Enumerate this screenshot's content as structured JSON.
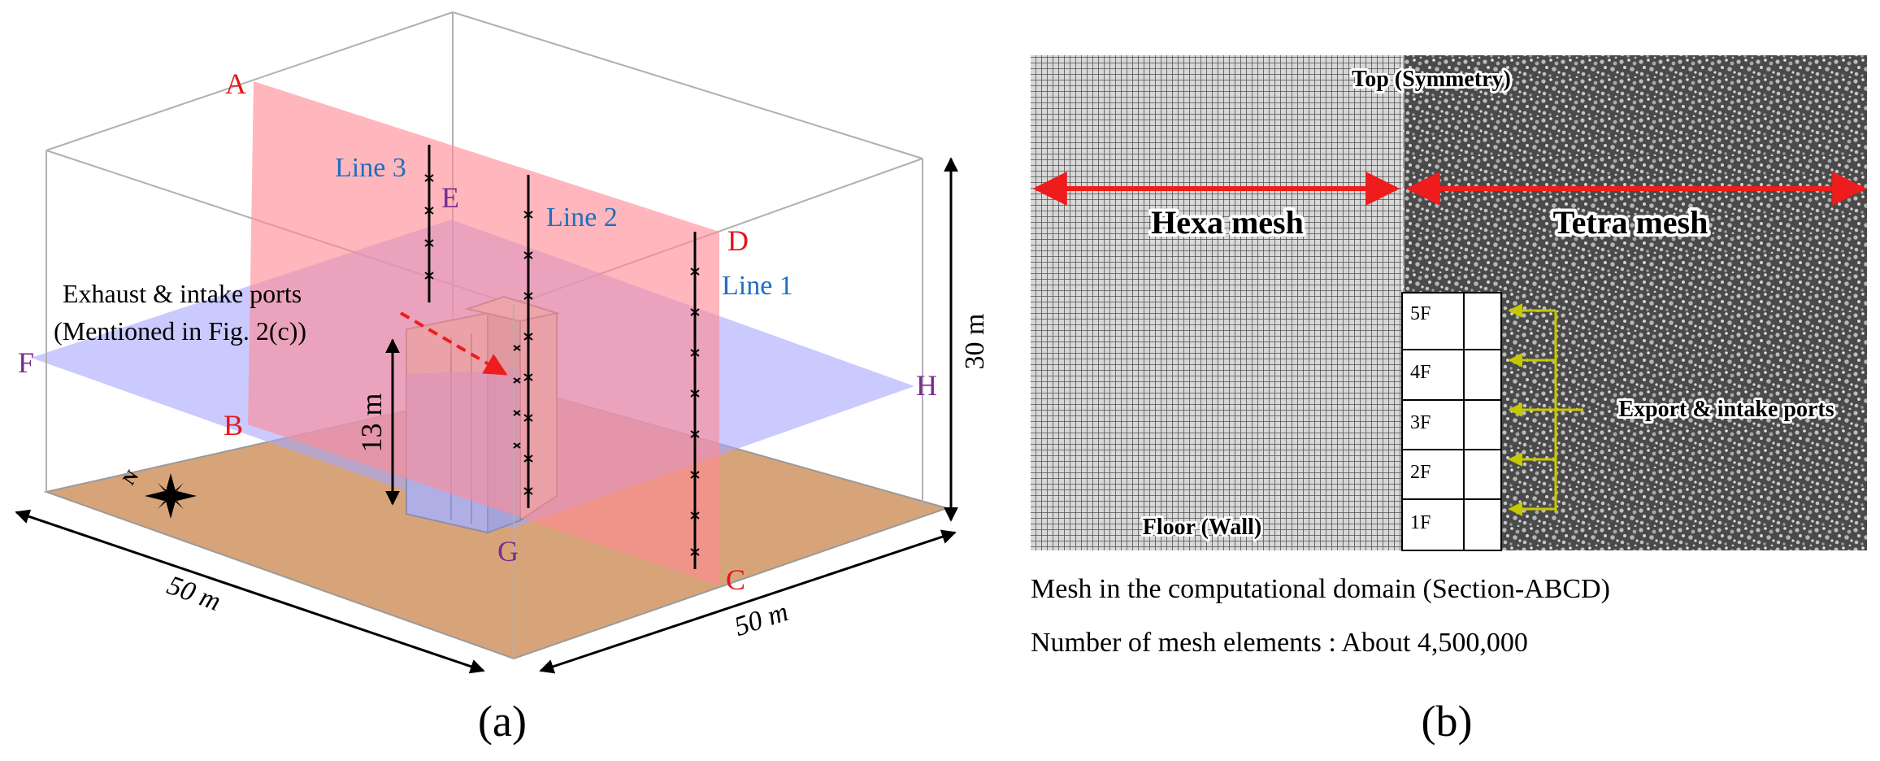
{
  "panel_a": {
    "label": "(a)",
    "points": {
      "A": "A",
      "B": "B",
      "C": "C",
      "D": "D",
      "E": "E",
      "F": "F",
      "G": "G",
      "H": "H"
    },
    "lines": {
      "line1": "Line 1",
      "line2": "Line 2",
      "line3": "Line 3"
    },
    "ports_label_1": "Exhaust & intake ports",
    "ports_label_2": "(Mentioned in Fig. 2(c))",
    "height_building": "13 m",
    "height_domain": "30 m",
    "width_left": "50 m",
    "width_right": "50 m",
    "compass_letter": "N",
    "colors": {
      "vertical_plane": "#ff8a94",
      "horizontal_plane": "#a7a7ff",
      "ground": "#d7a47a",
      "building": "#c4c4c4",
      "label_red": "#e8141c",
      "label_purple": "#7a2d8e",
      "label_blue": "#1f6fc0"
    }
  },
  "panel_b": {
    "label": "(b)",
    "top_label": "Top (Symmetry)",
    "hexa_label": "Hexa mesh",
    "tetra_label": "Tetra mesh",
    "floor_label": "Floor (Wall)",
    "ports_label": "Export & intake ports",
    "floors": [
      "5F",
      "4F",
      "3F",
      "2F",
      "1F"
    ],
    "caption_1": "Mesh in the computational domain (Section-ABCD)",
    "caption_2": "Number of mesh elements : About 4,500,000",
    "colors": {
      "arrow": "#ee1c1c",
      "ports_arrow": "#c8c800"
    }
  }
}
